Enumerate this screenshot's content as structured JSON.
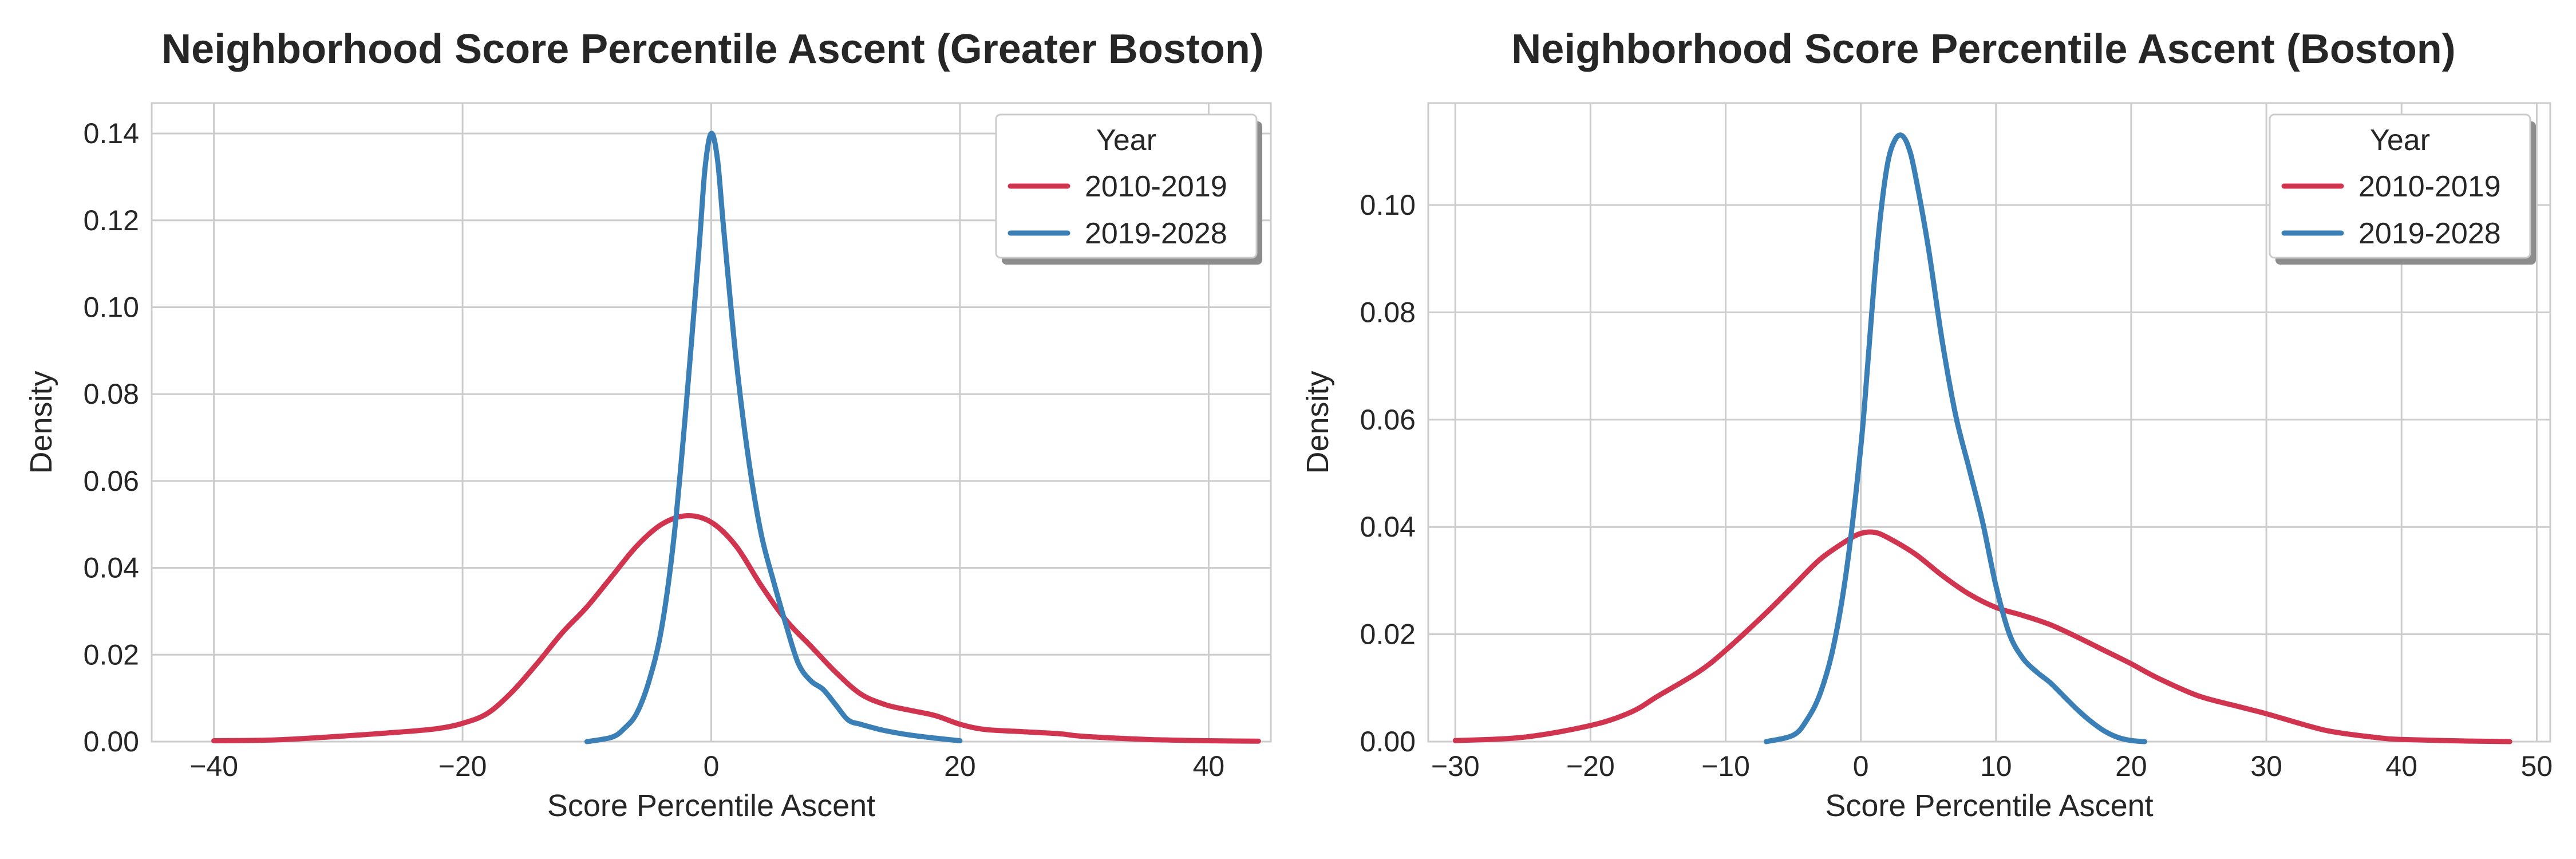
{
  "chart_data": [
    {
      "type": "line",
      "title": "Neighborhood Score Percentile Ascent (Greater Boston)",
      "xlabel": "Score Percentile Ascent",
      "ylabel": "Density",
      "xlim": [
        -45,
        45
      ],
      "ylim": [
        0,
        0.147
      ],
      "xticks": [
        -40,
        -20,
        0,
        20,
        40
      ],
      "xtick_labels": [
        "−40",
        "−20",
        "0",
        "20",
        "40"
      ],
      "yticks": [
        0,
        0.02,
        0.04,
        0.06,
        0.08,
        0.1,
        0.12,
        0.14
      ],
      "ytick_labels": [
        "0.00",
        "0.02",
        "0.04",
        "0.06",
        "0.08",
        "0.10",
        "0.12",
        "0.14"
      ],
      "grid": true,
      "legend": {
        "title": "Year",
        "position": "top-right"
      },
      "series": [
        {
          "name": "2010-2019",
          "color": "#d1344f",
          "points": [
            [
              -40,
              0.0002
            ],
            [
              -35,
              0.0004
            ],
            [
              -30,
              0.0012
            ],
            [
              -25,
              0.0022
            ],
            [
              -22,
              0.003
            ],
            [
              -20,
              0.0042
            ],
            [
              -18,
              0.0065
            ],
            [
              -16,
              0.0115
            ],
            [
              -14,
              0.018
            ],
            [
              -12,
              0.025
            ],
            [
              -10,
              0.031
            ],
            [
              -8,
              0.038
            ],
            [
              -6,
              0.045
            ],
            [
              -4,
              0.05
            ],
            [
              -2,
              0.052
            ],
            [
              0,
              0.0505
            ],
            [
              2,
              0.045
            ],
            [
              4,
              0.036
            ],
            [
              6,
              0.028
            ],
            [
              8,
              0.022
            ],
            [
              10,
              0.016
            ],
            [
              12,
              0.011
            ],
            [
              14,
              0.0085
            ],
            [
              16,
              0.0072
            ],
            [
              18,
              0.006
            ],
            [
              20,
              0.004
            ],
            [
              22,
              0.0028
            ],
            [
              25,
              0.0023
            ],
            [
              28,
              0.0018
            ],
            [
              30,
              0.0012
            ],
            [
              35,
              0.0005
            ],
            [
              40,
              0.0002
            ],
            [
              44,
              0.0001
            ]
          ]
        },
        {
          "name": "2019-2028",
          "color": "#3a80b6",
          "points": [
            [
              -10,
              0.0
            ],
            [
              -8,
              0.001
            ],
            [
              -7,
              0.003
            ],
            [
              -6,
              0.0065
            ],
            [
              -5,
              0.014
            ],
            [
              -4,
              0.026
            ],
            [
              -3,
              0.047
            ],
            [
              -2,
              0.078
            ],
            [
              -1,
              0.113
            ],
            [
              -0.5,
              0.132
            ],
            [
              0,
              0.14
            ],
            [
              0.5,
              0.134
            ],
            [
              1,
              0.118
            ],
            [
              2,
              0.088
            ],
            [
              3,
              0.065
            ],
            [
              4,
              0.048
            ],
            [
              5,
              0.037
            ],
            [
              6,
              0.027
            ],
            [
              7,
              0.018
            ],
            [
              8,
              0.014
            ],
            [
              9,
              0.012
            ],
            [
              10,
              0.0085
            ],
            [
              11,
              0.005
            ],
            [
              12,
              0.004
            ],
            [
              13,
              0.0032
            ],
            [
              14,
              0.0025
            ],
            [
              16,
              0.0015
            ],
            [
              18,
              0.0008
            ],
            [
              20,
              0.0002
            ]
          ]
        }
      ]
    },
    {
      "type": "line",
      "title": "Neighborhood Score Percentile Ascent (Boston)",
      "xlabel": "Score Percentile Ascent",
      "ylabel": "Density",
      "xlim": [
        -32,
        51
      ],
      "ylim": [
        0,
        0.119
      ],
      "xticks": [
        -30,
        -20,
        -10,
        0,
        10,
        20,
        30,
        40,
        50
      ],
      "xtick_labels": [
        "−30",
        "−20",
        "−10",
        "0",
        "10",
        "20",
        "30",
        "40",
        "50"
      ],
      "yticks": [
        0,
        0.02,
        0.04,
        0.06,
        0.08,
        0.1
      ],
      "ytick_labels": [
        "0.00",
        "0.02",
        "0.04",
        "0.06",
        "0.08",
        "0.10"
      ],
      "grid": true,
      "legend": {
        "title": "Year",
        "position": "top-right"
      },
      "series": [
        {
          "name": "2010-2019",
          "color": "#d1344f",
          "points": [
            [
              -30,
              0.0002
            ],
            [
              -25,
              0.0008
            ],
            [
              -20,
              0.003
            ],
            [
              -17,
              0.0055
            ],
            [
              -15,
              0.0085
            ],
            [
              -12,
              0.013
            ],
            [
              -10,
              0.017
            ],
            [
              -7,
              0.024
            ],
            [
              -5,
              0.029
            ],
            [
              -3,
              0.034
            ],
            [
              -1,
              0.0375
            ],
            [
              0,
              0.0388
            ],
            [
              1,
              0.039
            ],
            [
              2,
              0.038
            ],
            [
              4,
              0.035
            ],
            [
              6,
              0.031
            ],
            [
              8,
              0.0275
            ],
            [
              10,
              0.025
            ],
            [
              12,
              0.0235
            ],
            [
              14,
              0.0218
            ],
            [
              16,
              0.0195
            ],
            [
              18,
              0.017
            ],
            [
              20,
              0.0145
            ],
            [
              22,
              0.0118
            ],
            [
              25,
              0.0085
            ],
            [
              28,
              0.0065
            ],
            [
              30,
              0.0052
            ],
            [
              33,
              0.003
            ],
            [
              35,
              0.0018
            ],
            [
              38,
              0.0008
            ],
            [
              40,
              0.0004
            ],
            [
              45,
              0.0001
            ],
            [
              48,
              0.0
            ]
          ]
        },
        {
          "name": "2019-2028",
          "color": "#3a80b6",
          "points": [
            [
              -7,
              0.0
            ],
            [
              -5,
              0.0012
            ],
            [
              -4,
              0.004
            ],
            [
              -3,
              0.009
            ],
            [
              -2,
              0.018
            ],
            [
              -1,
              0.033
            ],
            [
              0,
              0.055
            ],
            [
              0.5,
              0.07
            ],
            [
              1,
              0.086
            ],
            [
              1.5,
              0.099
            ],
            [
              2,
              0.108
            ],
            [
              2.5,
              0.112
            ],
            [
              3,
              0.113
            ],
            [
              3.5,
              0.111
            ],
            [
              4,
              0.106
            ],
            [
              5,
              0.092
            ],
            [
              6,
              0.075
            ],
            [
              7,
              0.061
            ],
            [
              8,
              0.051
            ],
            [
              9,
              0.041
            ],
            [
              10,
              0.029
            ],
            [
              11,
              0.02
            ],
            [
              12,
              0.0155
            ],
            [
              13,
              0.013
            ],
            [
              14,
              0.011
            ],
            [
              15,
              0.0085
            ],
            [
              16,
              0.006
            ],
            [
              17,
              0.0038
            ],
            [
              18,
              0.002
            ],
            [
              19,
              0.0008
            ],
            [
              20,
              0.0002
            ],
            [
              21,
              0.0
            ]
          ]
        }
      ]
    }
  ]
}
